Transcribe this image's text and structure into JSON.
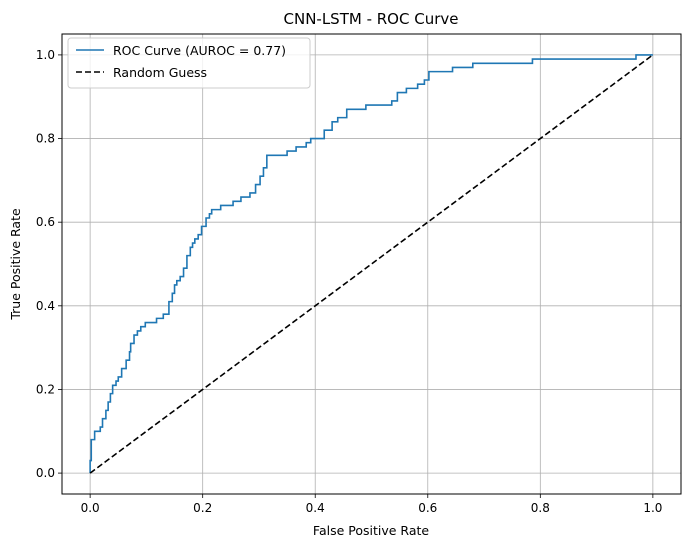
{
  "chart_data": {
    "type": "line",
    "title": "CNN-LSTM - ROC Curve",
    "xlabel": "False Positive Rate",
    "ylabel": "True Positive Rate",
    "xlim": [
      -0.05,
      1.05
    ],
    "ylim": [
      -0.05,
      1.05
    ],
    "xticks": [
      "0.0",
      "0.2",
      "0.4",
      "0.6",
      "0.8",
      "1.0"
    ],
    "yticks": [
      "0.0",
      "0.2",
      "0.4",
      "0.6",
      "0.8",
      "1.0"
    ],
    "grid": true,
    "legend_position": "top-left",
    "series": [
      {
        "name": "ROC Curve (AUROC = 0.77)",
        "color": "#1f77b4",
        "style": "solid",
        "step": true,
        "x": [
          0.0,
          0.0,
          0.002,
          0.002,
          0.008,
          0.008,
          0.018,
          0.022,
          0.028,
          0.032,
          0.036,
          0.04,
          0.046,
          0.05,
          0.056,
          0.064,
          0.07,
          0.072,
          0.078,
          0.084,
          0.09,
          0.098,
          0.106,
          0.118,
          0.13,
          0.14,
          0.146,
          0.15,
          0.154,
          0.16,
          0.166,
          0.172,
          0.178,
          0.182,
          0.186,
          0.192,
          0.198,
          0.206,
          0.212,
          0.216,
          0.222,
          0.232,
          0.254,
          0.268,
          0.284,
          0.294,
          0.302,
          0.308,
          0.314,
          0.324,
          0.35,
          0.366,
          0.384,
          0.392,
          0.398,
          0.416,
          0.43,
          0.44,
          0.456,
          0.47,
          0.49,
          0.516,
          0.536,
          0.546,
          0.562,
          0.582,
          0.594,
          0.602,
          0.626,
          0.644,
          0.68,
          0.74,
          0.786,
          0.97,
          1.0
        ],
        "y": [
          0.0,
          0.03,
          0.06,
          0.08,
          0.08,
          0.1,
          0.11,
          0.13,
          0.15,
          0.17,
          0.19,
          0.21,
          0.22,
          0.23,
          0.25,
          0.27,
          0.29,
          0.31,
          0.33,
          0.34,
          0.35,
          0.36,
          0.36,
          0.37,
          0.38,
          0.41,
          0.43,
          0.45,
          0.46,
          0.47,
          0.49,
          0.52,
          0.54,
          0.55,
          0.56,
          0.57,
          0.59,
          0.61,
          0.62,
          0.63,
          0.63,
          0.64,
          0.65,
          0.66,
          0.67,
          0.69,
          0.71,
          0.73,
          0.76,
          0.76,
          0.77,
          0.78,
          0.79,
          0.8,
          0.8,
          0.82,
          0.84,
          0.85,
          0.87,
          0.87,
          0.88,
          0.88,
          0.89,
          0.91,
          0.92,
          0.93,
          0.94,
          0.96,
          0.96,
          0.97,
          0.98,
          0.98,
          0.99,
          1.0,
          1.0
        ]
      },
      {
        "name": "Random Guess",
        "color": "#000000",
        "style": "dashed",
        "x": [
          0.0,
          1.0
        ],
        "y": [
          0.0,
          1.0
        ]
      }
    ]
  }
}
